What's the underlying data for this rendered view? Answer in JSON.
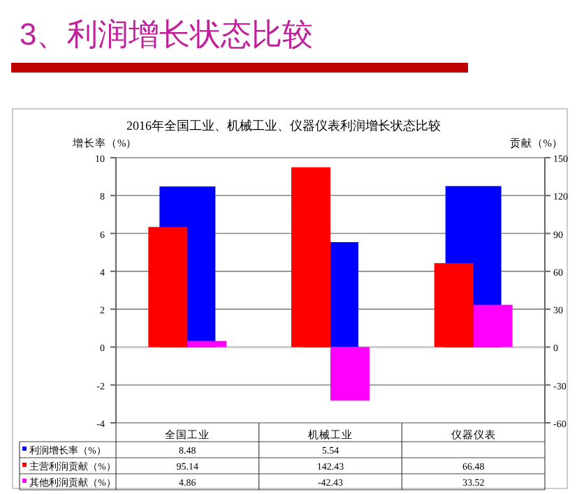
{
  "chart_data": {
    "type": "bar",
    "title": "3、利润增长状态比较",
    "subtitle": "2016年全国工业、机械工业、仪器仪表利润增长状态比较",
    "ylabel": "增长率（%）",
    "y2label": "贡献（%）",
    "categories": [
      "全国工业",
      "机械工业",
      "仪器仪表"
    ],
    "series": [
      {
        "name": "利润增长率（%）",
        "color": "#0000ff",
        "values": [
          8.48,
          5.54,
          8.5
        ],
        "value_labels": [
          "8.48",
          "5.54",
          null
        ]
      },
      {
        "name": "主营利润贡献（%）",
        "color": "#ff0000",
        "axis": "y2",
        "values": [
          95.14,
          142.43,
          66.48
        ],
        "value_labels": [
          "95.14",
          "142.43",
          "66.48"
        ]
      },
      {
        "name": "其他利润贡献（%）",
        "color": "#ff00ff",
        "axis": "y2",
        "values": [
          4.86,
          -42.43,
          33.52
        ],
        "value_labels": [
          "4.86",
          "-42.43",
          "33.52"
        ]
      }
    ],
    "ylim": [
      -4,
      10
    ],
    "yticks": [
      -4,
      -2,
      0,
      2,
      4,
      6,
      8,
      10
    ],
    "y2lim": [
      -60,
      150
    ],
    "y2ticks": [
      -60,
      -30,
      0,
      30,
      60,
      90,
      120,
      150
    ],
    "grid": "y",
    "legend": "bottom left"
  }
}
